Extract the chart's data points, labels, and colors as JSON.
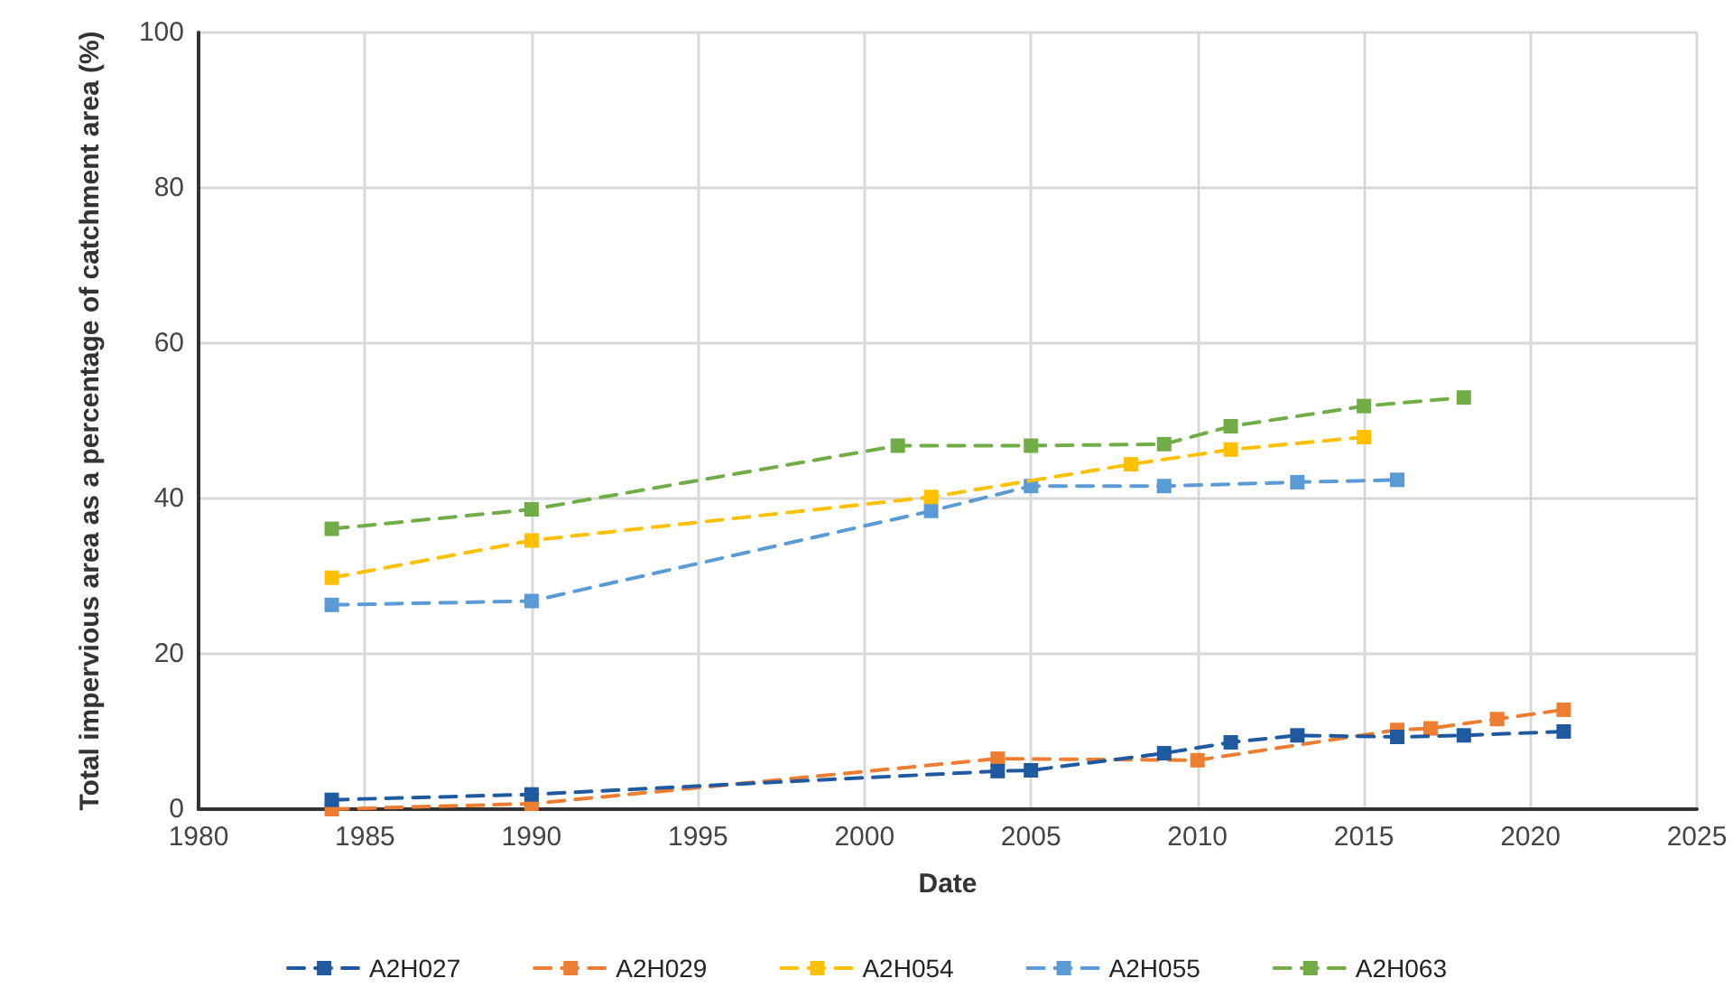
{
  "chart_data": {
    "type": "line",
    "xlabel": "Date",
    "ylabel": "Total impervious area as a percentage of catchment area (%)",
    "xlim": [
      1980,
      2025
    ],
    "xticks": [
      1980,
      1985,
      1990,
      1995,
      2000,
      2005,
      2010,
      2015,
      2020,
      2025
    ],
    "ylim": [
      0,
      100
    ],
    "yticks": [
      0,
      20,
      40,
      60,
      80,
      100
    ],
    "grid": true,
    "legend": "bottom",
    "marker": "square",
    "line_style": "dashed",
    "series": [
      {
        "name": "A2H027",
        "color": "#1f5aa0",
        "x": [
          1984,
          1990,
          2004,
          2005,
          2009,
          2011,
          2013,
          2016,
          2018,
          2021
        ],
        "values": [
          1.2,
          1.9,
          4.9,
          5,
          7.2,
          8.6,
          9.5,
          9.3,
          9.5,
          10
        ]
      },
      {
        "name": "A2H029",
        "color": "#ed7d31",
        "x": [
          1984,
          1990,
          2004,
          2010,
          2016,
          2017,
          2019,
          2021
        ],
        "values": [
          0,
          0.7,
          6.5,
          6.3,
          10.2,
          10.4,
          11.6,
          12.8
        ]
      },
      {
        "name": "A2H054",
        "color": "#ffc000",
        "x": [
          1984,
          1990,
          2002,
          2008,
          2011,
          2015
        ],
        "values": [
          29.8,
          34.6,
          40.2,
          44.4,
          46.3,
          47.9
        ]
      },
      {
        "name": "A2H055",
        "color": "#5b9bd5",
        "x": [
          1984,
          1990,
          2002,
          2005,
          2009,
          2013,
          2016
        ],
        "values": [
          26.3,
          26.8,
          38.4,
          41.6,
          41.6,
          42.1,
          42.4
        ]
      },
      {
        "name": "A2H063",
        "color": "#70ad47",
        "x": [
          1984,
          1990,
          2001,
          2005,
          2009,
          2011,
          2015,
          2018
        ],
        "values": [
          36.1,
          38.6,
          46.8,
          46.8,
          47,
          49.3,
          51.9,
          53
        ]
      }
    ]
  }
}
